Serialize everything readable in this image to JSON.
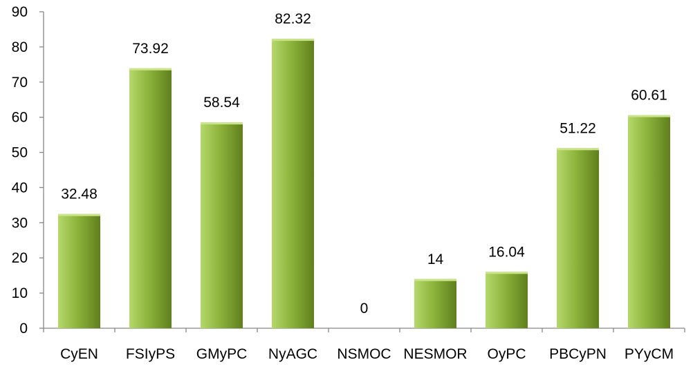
{
  "chart_data": {
    "type": "bar",
    "title": "",
    "xlabel": "",
    "ylabel": "",
    "ylim": [
      0,
      90
    ],
    "yticks": [
      0,
      10,
      20,
      30,
      40,
      50,
      60,
      70,
      80,
      90
    ],
    "grid": false,
    "legend": "none",
    "categories": [
      "CyEN",
      "FSIyPS",
      "GMyPC",
      "NyAGC",
      "NSMOC",
      "NESMOR",
      "OyPC",
      "PBCyPN",
      "PYyCM"
    ],
    "values": [
      32.48,
      73.92,
      58.54,
      82.32,
      0,
      14,
      16.04,
      51.22,
      60.61
    ],
    "data_labels": [
      "32.48",
      "73.92",
      "58.54",
      "82.32",
      "0",
      "14",
      "16.04",
      "51.22",
      "60.61"
    ],
    "colors": {
      "bar_fill_light": "#b5d86b",
      "bar_fill_mid": "#8db43c",
      "bar_fill_dark": "#5f7f1c",
      "bar_top": "#c9e48a",
      "axis": "#868686"
    }
  }
}
